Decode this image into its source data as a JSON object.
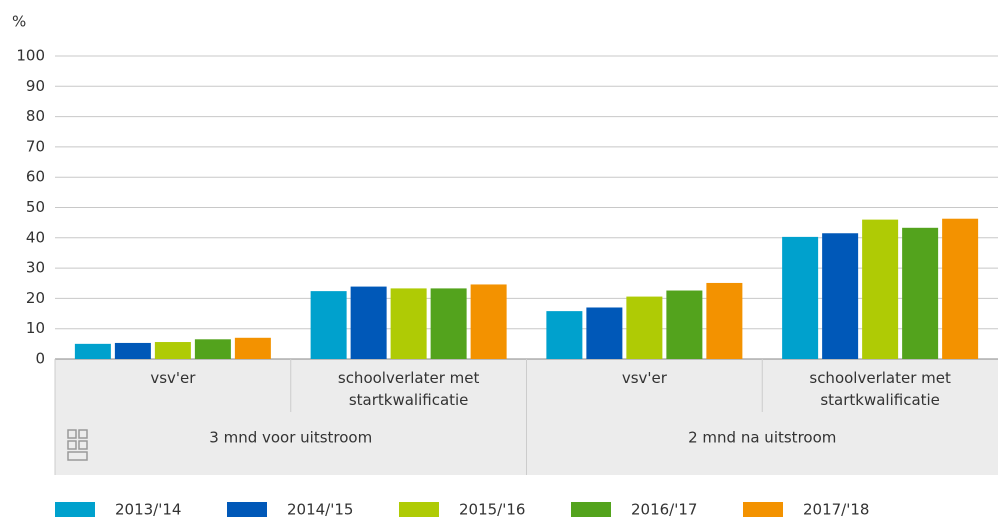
{
  "chart_data": {
    "type": "bar",
    "y_label": "%",
    "categories": [
      "vsv'er",
      "schoolverlater met startkwalificatie",
      "vsv'er",
      "schoolverlater met startkwalificatie"
    ],
    "groups": [
      "3 mnd voor uitstroom",
      "2 mnd na uitstroom"
    ],
    "series": [
      {
        "name": "2013/'14",
        "color": "#00a1cd",
        "values": [
          5.0,
          22.4,
          15.8,
          40.3
        ]
      },
      {
        "name": "2014/'15",
        "color": "#0058b8",
        "values": [
          5.3,
          23.9,
          17.0,
          41.5
        ]
      },
      {
        "name": "2015/'16",
        "color": "#afcb05",
        "values": [
          5.6,
          23.3,
          20.6,
          46.0
        ]
      },
      {
        "name": "2016/'17",
        "color": "#53a31d",
        "values": [
          6.5,
          23.3,
          22.6,
          43.3
        ]
      },
      {
        "name": "2017/'18",
        "color": "#f39200",
        "values": [
          7.0,
          24.6,
          25.1,
          46.3
        ]
      }
    ],
    "ylim": [
      0,
      100
    ],
    "yticks": [
      0,
      10,
      20,
      30,
      40,
      50,
      60,
      70,
      80,
      90,
      100
    ],
    "grid": true
  }
}
